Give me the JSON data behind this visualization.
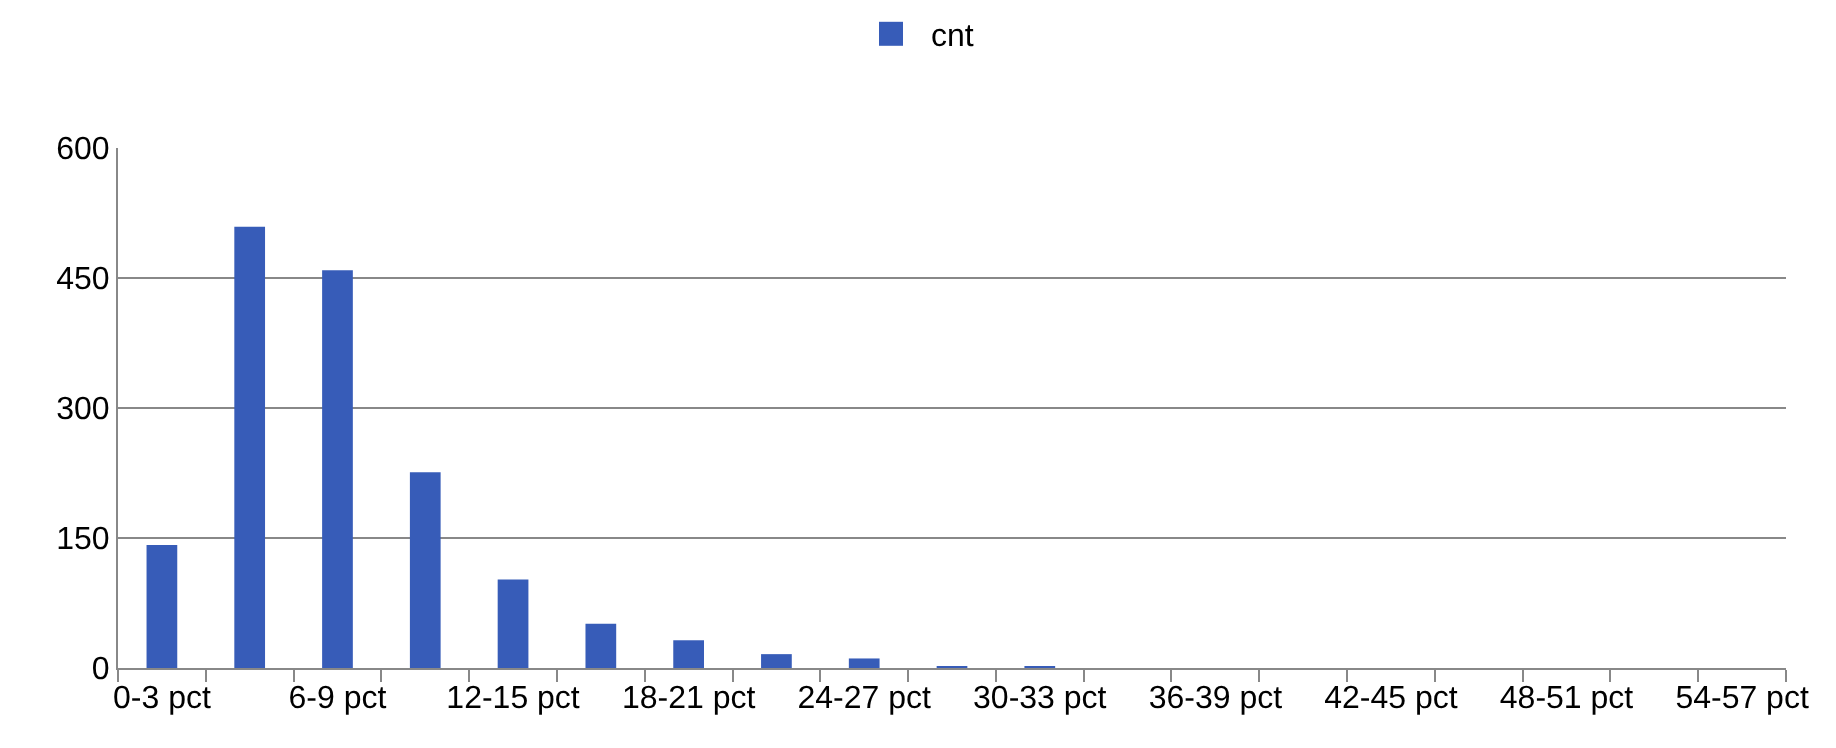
{
  "chart_data": {
    "type": "bar",
    "categories": [
      "0-3 pct",
      null,
      "6-9 pct",
      null,
      "12-15 pct",
      null,
      "18-21 pct",
      null,
      "24-27 pct",
      null,
      "30-33 pct",
      null,
      "36-39 pct",
      null,
      "42-45 pct",
      null,
      "48-51 pct",
      null,
      "54-57 pct"
    ],
    "series": [
      {
        "name": "cnt",
        "color": "#375cb8",
        "values": [
          142,
          509,
          459,
          226,
          102,
          51,
          32,
          16,
          11,
          2,
          1,
          0,
          0,
          0,
          0,
          0,
          0,
          0,
          0
        ]
      }
    ],
    "ylim": [
      0,
      600
    ],
    "yticks": [
      0,
      150,
      300,
      450,
      600
    ],
    "grid": "y",
    "legend": "top"
  }
}
